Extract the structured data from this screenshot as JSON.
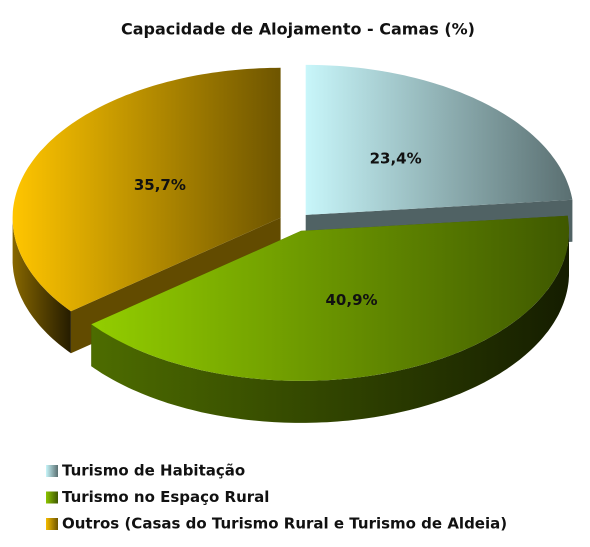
{
  "chart_data": {
    "type": "pie",
    "title": "Capacidade de Alojamento - Camas (%)",
    "categories": [
      "Turismo de Habitação",
      "Turismo no Espaço Rural",
      "Outros (Casas do Turismo Rural e Turismo de Aldeia)"
    ],
    "values": [
      23.4,
      40.9,
      35.7
    ],
    "value_labels": [
      "23,4%",
      "40,9%",
      "35,7%"
    ],
    "colors": [
      "#c8f6fa",
      "#8cc400",
      "#f5bc00"
    ]
  }
}
